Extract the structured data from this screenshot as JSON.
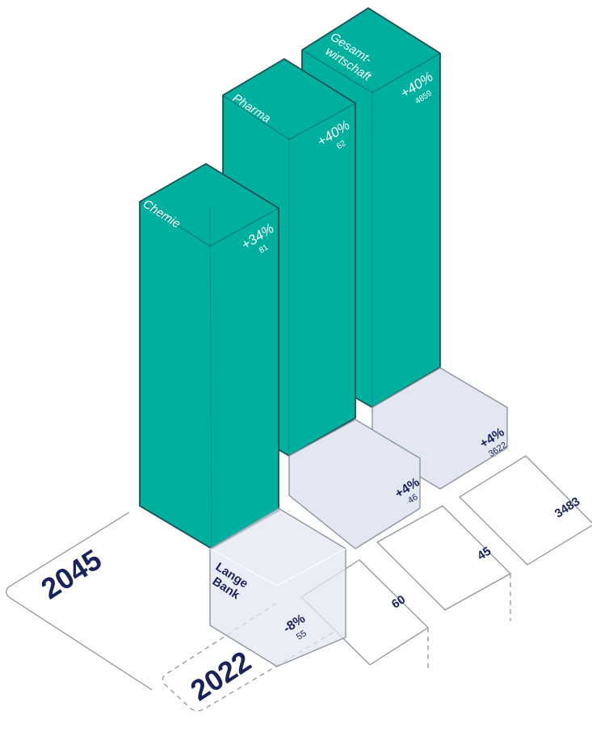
{
  "colors": {
    "teal": "#00b09e",
    "teal_outline": "#1f4f55",
    "box_fill": "#e3e7f1",
    "outline_gray": "#8d96a2",
    "navy": "#18235b",
    "white": "#ffffff"
  },
  "chart_data": {
    "type": "bar",
    "categories": [
      "Chemie",
      "Pharma",
      "Gesamtwirtschaft"
    ],
    "category_labels": [
      [
        "Chemie"
      ],
      [
        "Pharma"
      ],
      [
        "Gesamt-",
        "wirtschaft"
      ]
    ],
    "base_values": [
      60,
      45,
      3483
    ],
    "series": [
      {
        "name": "Lange Bank",
        "values": [
          55,
          46,
          3622
        ],
        "change": [
          "-8%",
          "+4%",
          "+4%"
        ],
        "label_lines": [
          "Lange",
          "Bank"
        ]
      },
      {
        "values": [
          81,
          62,
          4859
        ],
        "change": [
          "+34%",
          "+40%",
          "+40%"
        ]
      }
    ],
    "year_labels": {
      "front": "2022",
      "back": "2045"
    }
  }
}
